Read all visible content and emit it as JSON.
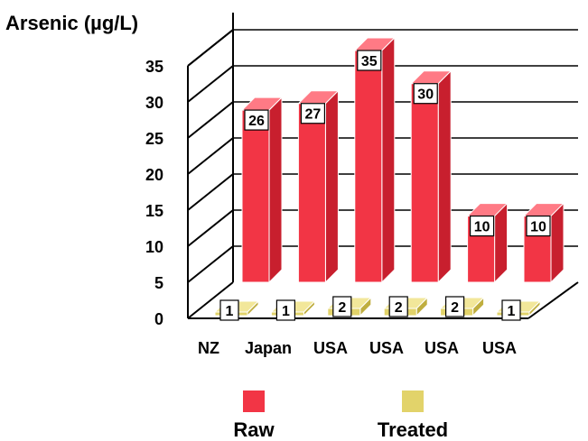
{
  "chart_data": {
    "type": "bar",
    "ylabel": "Arsenic (µg/L)",
    "ylim": [
      0,
      35
    ],
    "yticks": [
      0,
      5,
      10,
      15,
      20,
      25,
      30,
      35
    ],
    "categories": [
      "NZ",
      "Japan",
      "USA",
      "USA",
      "USA",
      "USA"
    ],
    "series": [
      {
        "name": "Raw",
        "values": [
          26,
          27,
          35,
          30,
          10,
          10
        ]
      },
      {
        "name": "Treated",
        "values": [
          1,
          1,
          2,
          2,
          2,
          1
        ]
      }
    ],
    "three_d": true,
    "grid": true,
    "legend": "bottom"
  },
  "colors": {
    "raw_front": "#f23545",
    "raw_side": "#c81f2e",
    "raw_top": "#ff7a85",
    "treated_front": "#e2d36a",
    "treated_side": "#bfae3f",
    "treated_top": "#f2e79a",
    "axis": "#000000"
  }
}
